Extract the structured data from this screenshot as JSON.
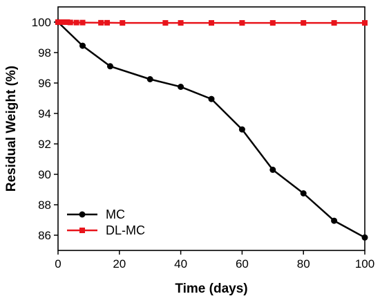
{
  "chart_data": {
    "type": "line",
    "title": "",
    "xlabel": "Time (days)",
    "ylabel": "Residual Weight (%)",
    "xlim": [
      0,
      100
    ],
    "ylim": [
      85,
      101
    ],
    "xticks": [
      0,
      20,
      40,
      60,
      80,
      100
    ],
    "yticks": [
      86,
      88,
      90,
      92,
      94,
      96,
      98,
      100
    ],
    "grid": false,
    "legend": "lower-left",
    "series": [
      {
        "name": "MC",
        "color": "#000000",
        "marker": "circle",
        "x": [
          0,
          8,
          17,
          30,
          40,
          50,
          60,
          70,
          80,
          90,
          100
        ],
        "y": [
          100.0,
          98.45,
          97.1,
          96.25,
          95.75,
          94.95,
          92.95,
          90.3,
          88.75,
          86.95,
          85.85
        ]
      },
      {
        "name": "DL-MC",
        "color": "#e8141b",
        "marker": "square",
        "x": [
          0,
          1,
          2,
          3,
          4,
          6,
          8,
          14,
          16,
          21,
          35,
          40,
          50,
          60,
          70,
          80,
          90,
          100
        ],
        "y": [
          100.0,
          100.0,
          100.0,
          100.0,
          99.98,
          99.97,
          99.97,
          99.96,
          99.96,
          99.95,
          99.95,
          99.95,
          99.95,
          99.95,
          99.95,
          99.95,
          99.95,
          99.95
        ]
      }
    ]
  }
}
